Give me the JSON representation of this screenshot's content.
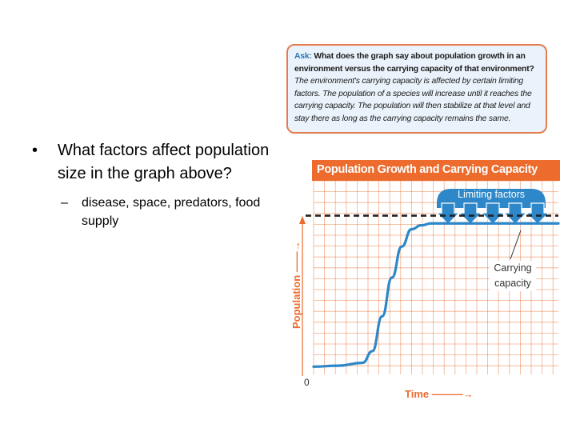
{
  "slide": {
    "bullet_main": "What factors affect population size in the graph above?",
    "bullet_sub": "disease, space, predators, food supply"
  },
  "ask_box": {
    "label": "Ask:",
    "question": "What does the graph say about population growth in an environment versus the carrying capacity of that environment?",
    "answer": "The environment's carrying capacity is affected by certain limiting factors. The population of a species will increase until it reaches the carrying capacity. The population will then stabilize at that level and stay there as long as the carrying capacity remains the same."
  },
  "colors": {
    "title_bar": "#ec6b2d",
    "grid": "#ec6b2d",
    "curve": "#2d87c8",
    "arrows": "#2d87c8",
    "axis_label": "#ec6b2d"
  },
  "chart_data": {
    "type": "line",
    "title": "Population Growth and Carrying Capacity",
    "xlabel": "Time",
    "ylabel": "Population",
    "y_tick_labels": [
      "0"
    ],
    "annotations": [
      "Limiting factors",
      "Carrying capacity"
    ],
    "carrying_capacity": 0.82,
    "xlim": [
      0,
      1
    ],
    "ylim": [
      0,
      1
    ],
    "grid": true,
    "series": [
      {
        "x": [
          0.0,
          0.1,
          0.2,
          0.24,
          0.28,
          0.32,
          0.36,
          0.4,
          0.44,
          0.48,
          0.52,
          0.6,
          0.8,
          1.0
        ],
        "y": [
          0.04,
          0.045,
          0.06,
          0.12,
          0.3,
          0.5,
          0.66,
          0.75,
          0.77,
          0.78,
          0.78,
          0.78,
          0.78,
          0.78
        ]
      }
    ]
  }
}
